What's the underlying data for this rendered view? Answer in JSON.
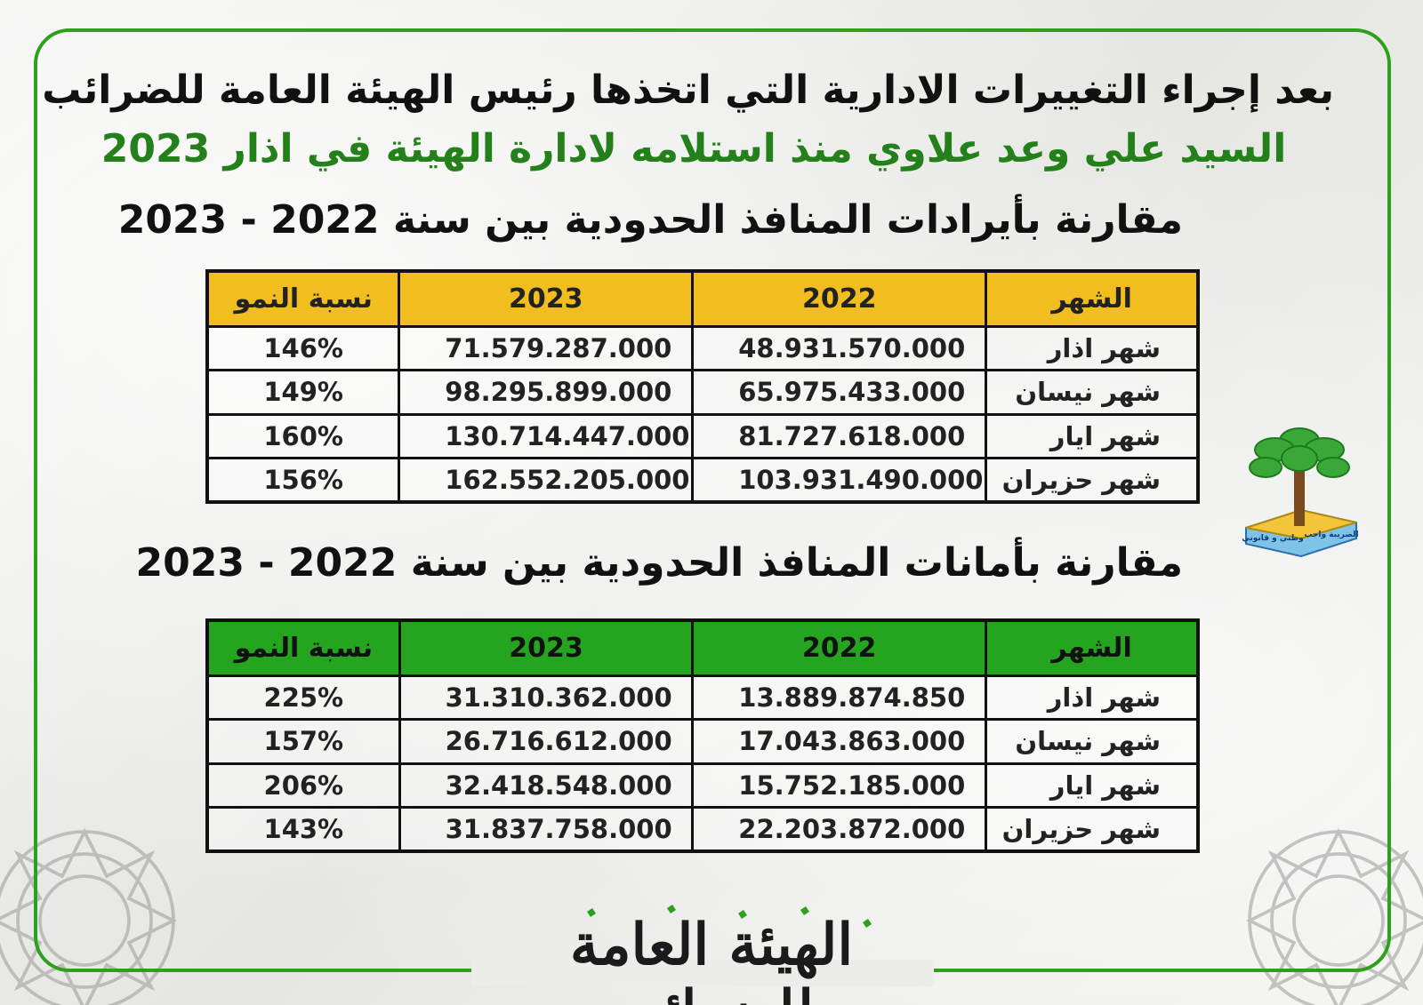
{
  "header": {
    "line1": "بعد إجراء التغييرات الادارية  التي اتخذها رئيس الهيئة العامة للضرائب",
    "line2": "السيد علي وعد علاوي منذ استلامه لادارة الهيئة في اذار 2023"
  },
  "colors": {
    "frame": "#2ea11c",
    "revenue_header": "#f1bd1f",
    "deposits_header": "#25a420",
    "growth_text": "#e0262e",
    "subtitle": "#24801a"
  },
  "revenues": {
    "title": "مقارنة بأيرادات المنافذ الحدودية بين سنة 2022 - 2023",
    "columns": {
      "month": "الشهر",
      "y2022": "2022",
      "y2023": "2023",
      "growth": "نسبة النمو"
    },
    "rows": [
      {
        "month": "شهر اذار",
        "y2022": "48.931.570.000",
        "y2023": "71.579.287.000",
        "growth": "146%"
      },
      {
        "month": "شهر نيسان",
        "y2022": "65.975.433.000",
        "y2023": "98.295.899.000",
        "growth": "149%"
      },
      {
        "month": "شهر ايار",
        "y2022": "81.727.618.000",
        "y2023": "130.714.447.000",
        "growth": "160%"
      },
      {
        "month": "شهر حزيران",
        "y2022": "103.931.490.000",
        "y2023": "162.552.205.000",
        "growth": "156%"
      }
    ]
  },
  "deposits": {
    "title": "مقارنة بأمانات المنافذ الحدودية بين سنة 2022 - 2023",
    "columns": {
      "month": "الشهر",
      "y2022": "2022",
      "y2023": "2023",
      "growth": "نسبة النمو"
    },
    "rows": [
      {
        "month": "شهر اذار",
        "y2022": "13.889.874.850",
        "y2023": "31.310.362.000",
        "growth": "225%"
      },
      {
        "month": "شهر نيسان",
        "y2022": "17.043.863.000",
        "y2023": "26.716.612.000",
        "growth": "157%"
      },
      {
        "month": "شهر ايار",
        "y2022": "15.752.185.000",
        "y2023": "32.418.548.000",
        "growth": "206%"
      },
      {
        "month": "شهر حزيران",
        "y2022": "22.203.872.000",
        "y2023": "31.837.758.000",
        "growth": "143%"
      }
    ]
  },
  "logo": {
    "icon": "palm-tree-emblem-icon",
    "ribbon_text_right": "الضريبة واجب",
    "ribbon_text_left": "وطني و قانوني"
  },
  "footer": {
    "calligraphy": "الهيئة العامة للضرائب",
    "icon": "calligraphy-logo-icon"
  }
}
